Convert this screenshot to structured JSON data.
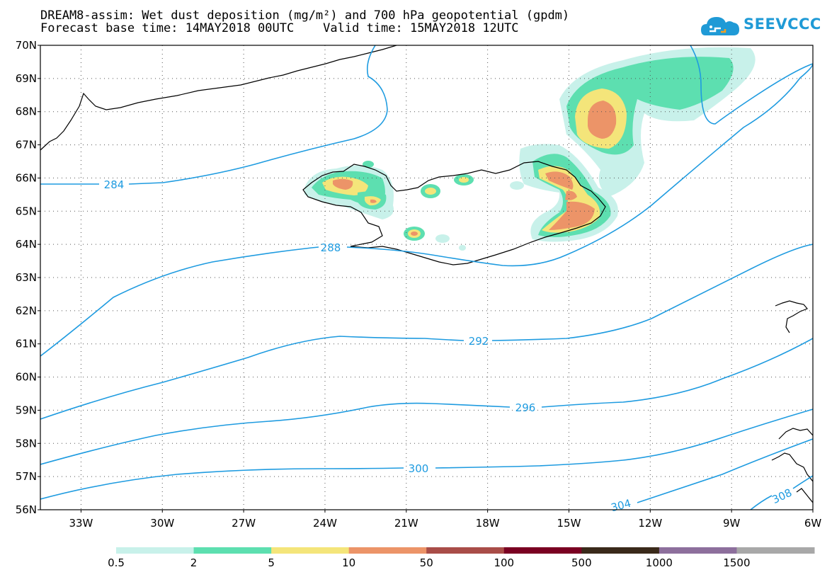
{
  "title": {
    "line1": "DREAM8-assim: Wet dust deposition (mg/m²) and 700 hPa geopotential (gpdm)",
    "line2": "Forecast base time: 14MAY2018 00UTC    Valid time: 15MAY2018 12UTC"
  },
  "logo": {
    "text": "SEEVCCC"
  },
  "axes": {
    "lat_labels": [
      "70N",
      "69N",
      "68N",
      "67N",
      "66N",
      "65N",
      "64N",
      "63N",
      "62N",
      "61N",
      "60N",
      "59N",
      "58N",
      "57N",
      "56N"
    ],
    "lon_labels": [
      "33W",
      "30W",
      "27W",
      "24W",
      "21W",
      "18W",
      "15W",
      "12W",
      "9W",
      "6W"
    ],
    "lat_range": [
      56,
      70
    ],
    "lon_range": [
      -34.5,
      -6
    ]
  },
  "contours": {
    "labels": [
      "284",
      "288",
      "292",
      "296",
      "300",
      "304",
      "308"
    ]
  },
  "legend": {
    "labels": [
      "0.5",
      "2",
      "5",
      "10",
      "50",
      "100",
      "500",
      "1000",
      "1500"
    ],
    "colors": [
      "#c8f1ea",
      "#5ddfb0",
      "#f4e57a",
      "#ec9468",
      "#a94d48",
      "#7a0022",
      "#3a2a1a",
      "#8d6f9c",
      "#a8a8a8"
    ]
  },
  "colors": {
    "contour": "#1e9be0",
    "frame": "#000000",
    "grid": "#555555"
  }
}
